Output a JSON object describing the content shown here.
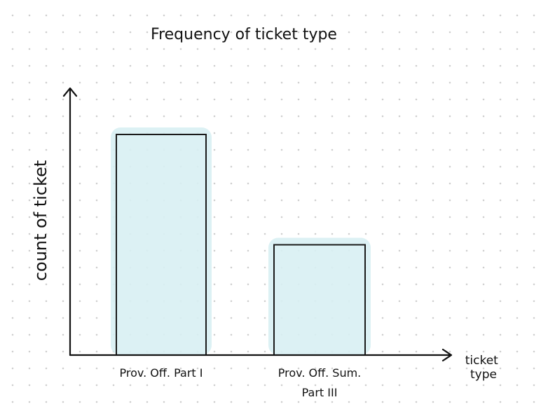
{
  "chart_data": {
    "type": "bar",
    "title": "Frequency of ticket type",
    "xlabel": "ticket type",
    "ylabel": "count of ticket",
    "categories": [
      "Prov. Off. Part I",
      "Prov. Off. Sum. Part III"
    ],
    "values": [
      10,
      5
    ],
    "ylim": [
      0,
      10
    ],
    "grid": false,
    "legend": "none",
    "colors": {
      "bar_fill": "#d8eff3",
      "bar_stroke": "#1a1a1a",
      "axis": "#111111"
    }
  }
}
